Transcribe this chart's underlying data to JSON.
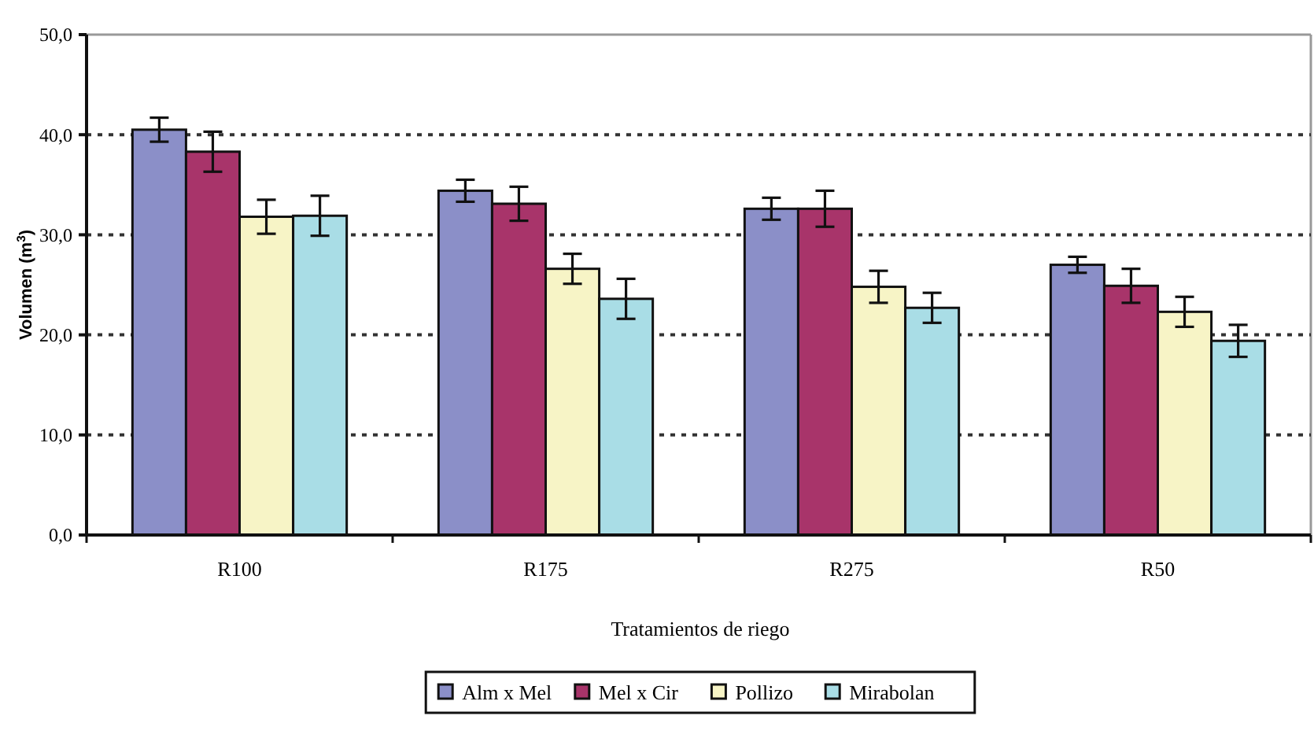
{
  "chart_data": {
    "type": "bar",
    "ylabel": "Volumen (m$^{3}$)",
    "xlabel": "Tratamientos de riego",
    "categories": [
      "R100",
      "R175",
      "R275",
      "R50"
    ],
    "series": [
      {
        "name": "Alm x Mel",
        "color": "#8b8fc8",
        "values": [
          40.5,
          34.4,
          32.6,
          27.0
        ],
        "errors": [
          1.2,
          1.1,
          1.1,
          0.8
        ]
      },
      {
        "name": "Mel x Cir",
        "color": "#a8346a",
        "values": [
          38.3,
          33.1,
          32.6,
          24.9
        ],
        "errors": [
          2.0,
          1.7,
          1.8,
          1.7
        ]
      },
      {
        "name": "Pollizo",
        "color": "#f7f4c6",
        "values": [
          31.8,
          26.6,
          24.8,
          22.3
        ],
        "errors": [
          1.7,
          1.5,
          1.6,
          1.5
        ]
      },
      {
        "name": "Mirabolan",
        "color": "#a9dde6",
        "values": [
          31.9,
          23.6,
          22.7,
          19.4
        ],
        "errors": [
          2.0,
          2.0,
          1.5,
          1.6
        ]
      }
    ],
    "ylim": [
      0,
      50
    ],
    "yticks": [
      {
        "value": 0,
        "label": "0,0"
      },
      {
        "value": 10,
        "label": "10,0"
      },
      {
        "value": 20,
        "label": "20,0"
      },
      {
        "value": 30,
        "label": "30,0"
      },
      {
        "value": 40,
        "label": "40,0"
      },
      {
        "value": 50,
        "label": "50,0"
      }
    ],
    "grid": "y",
    "legend": "bottom"
  }
}
